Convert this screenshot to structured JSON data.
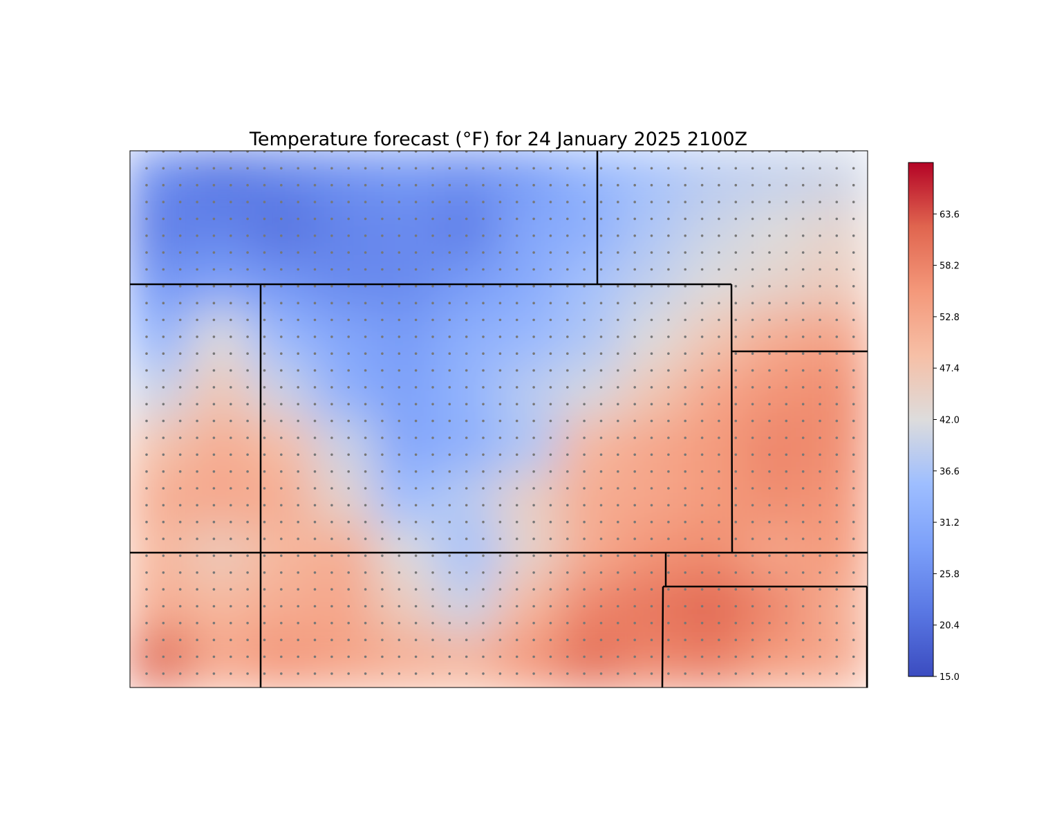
{
  "title": "Temperature forecast (°F) for  24 January 2025 2100Z",
  "colorbar": {
    "min": 15.0,
    "max": 69.0,
    "colormap": "coolwarm",
    "tick_labels": [
      "15.0",
      "20.4",
      "25.8",
      "31.2",
      "36.6",
      "42.0",
      "47.4",
      "52.8",
      "58.2",
      "63.6"
    ],
    "tick_values": [
      15.0,
      20.4,
      25.8,
      31.2,
      36.6,
      42.0,
      47.4,
      52.8,
      58.2,
      63.6
    ]
  },
  "colors": {
    "cold": "#3b4cc0",
    "neutral": "#dddddd",
    "warm": "#b40426",
    "boundary": "#000000",
    "station_dot": "#777777"
  },
  "temperature_field": {
    "grid_columns": 12,
    "grid_rows": 10,
    "values_F": [
      [
        25,
        22,
        24,
        26,
        27,
        26,
        28,
        33,
        36,
        38,
        39,
        40
      ],
      [
        23,
        24,
        21,
        24,
        25,
        23,
        30,
        32,
        37,
        40,
        42,
        44
      ],
      [
        27,
        29,
        27,
        25,
        25,
        28,
        31,
        36,
        39,
        42,
        44,
        46
      ],
      [
        33,
        42,
        34,
        30,
        28,
        32,
        34,
        37,
        42,
        47,
        52,
        54
      ],
      [
        40,
        47,
        40,
        32,
        29,
        33,
        38,
        41,
        47,
        53,
        56,
        57
      ],
      [
        48,
        52,
        49,
        40,
        30,
        32,
        37,
        50,
        53,
        55,
        58,
        57
      ],
      [
        52,
        53,
        52,
        44,
        35,
        38,
        45,
        52,
        53,
        55,
        57,
        56
      ],
      [
        50,
        46,
        50,
        52,
        42,
        36,
        44,
        52,
        56,
        57,
        53,
        55
      ],
      [
        52,
        50,
        52,
        53,
        46,
        40,
        50,
        58,
        60,
        62,
        58,
        52
      ],
      [
        62,
        53,
        56,
        54,
        52,
        51,
        56,
        61,
        58,
        59,
        55,
        53
      ]
    ]
  }
}
